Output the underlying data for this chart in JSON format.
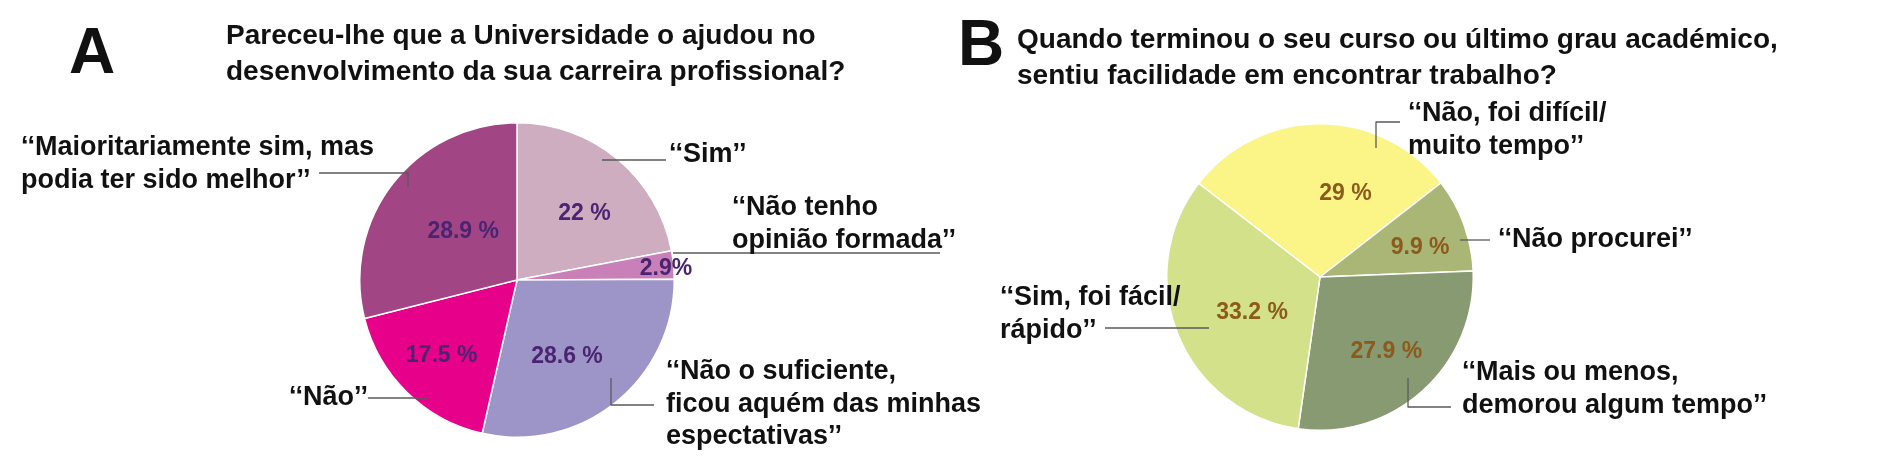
{
  "chart_data": [
    {
      "type": "pie",
      "title": "Pareceu-lhe que a Universidade o ajudou no desenvolvimento da sua carreira profissional?",
      "annotations": [
        "A"
      ],
      "categories": [
        "‘‘Sim’’",
        "‘‘Não tenho opinião formada’’",
        "‘‘Não o suficiente, ficou aquém das minhas espectativas’’",
        "‘‘Não’’",
        "‘‘Maioritariamente sim, mas podia ter sido melhor’’"
      ],
      "values": [
        22,
        2.9,
        28.6,
        17.5,
        28.9
      ],
      "value_labels": [
        "22 %",
        "2.9%",
        "28.6 %",
        "17.5 %",
        "28.9 %"
      ],
      "colors": [
        "#cfadc0",
        "#c97fb8",
        "#9d95c8",
        "#e6008a",
        "#a24584"
      ]
    },
    {
      "type": "pie",
      "title": "Quando terminou o seu curso ou último grau académico, sentiu facilidade em encontrar trabalho?",
      "annotations": [
        "B"
      ],
      "categories": [
        "‘‘Não, foi difícil/ muito tempo’’",
        "‘‘Não procurei’’",
        "‘‘Mais ou menos, demorou algum tempo’’",
        "‘‘Sim, foi fácil/ rápido’’"
      ],
      "values": [
        29,
        9.9,
        27.9,
        33.2
      ],
      "value_labels": [
        "29 %",
        "9.9 %",
        "27.9 %",
        "33.2 %"
      ],
      "colors": [
        "#fbf487",
        "#a9b676",
        "#889a72",
        "#d3e18a"
      ]
    }
  ]
}
